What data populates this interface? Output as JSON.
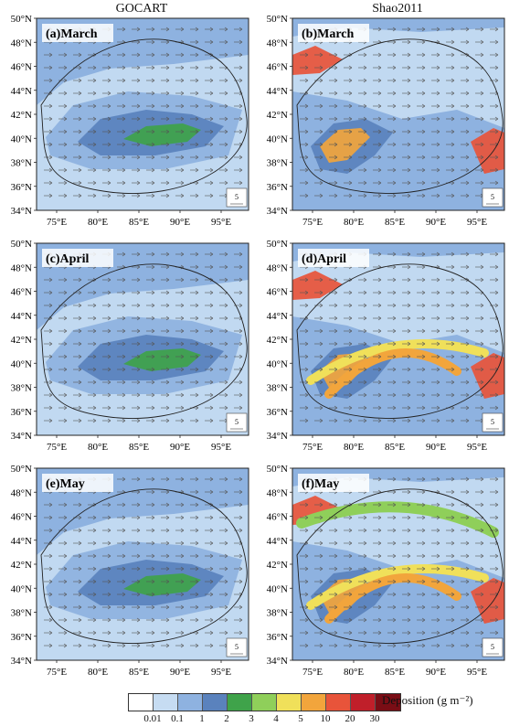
{
  "columns": [
    "GOCART",
    "Shao2011"
  ],
  "panels": [
    {
      "label": "(a)March"
    },
    {
      "label": "(b)March"
    },
    {
      "label": "(c)April"
    },
    {
      "label": "(d)April"
    },
    {
      "label": "(e)May"
    },
    {
      "label": "(f)May"
    }
  ],
  "lat_labels": [
    "50°N",
    "48°N",
    "46°N",
    "44°N",
    "42°N",
    "40°N",
    "38°N",
    "36°N",
    "34°N"
  ],
  "lon_labels": [
    "75°E",
    "80°E",
    "85°E",
    "90°E",
    "95°E"
  ],
  "vector_scale": "5",
  "colorbar": {
    "ticks": [
      "0.01",
      "0.1",
      "1",
      "2",
      "3",
      "4",
      "5",
      "10",
      "20",
      "30"
    ],
    "colors": [
      "#ffffff",
      "#c6dcf2",
      "#8eb2e0",
      "#5a82bd",
      "#3fa34a",
      "#8fcf5a",
      "#f0e05a",
      "#f2a53c",
      "#e8543a",
      "#c01f2a",
      "#7a0d15"
    ],
    "title": "Deposition (g m⁻²)"
  }
}
